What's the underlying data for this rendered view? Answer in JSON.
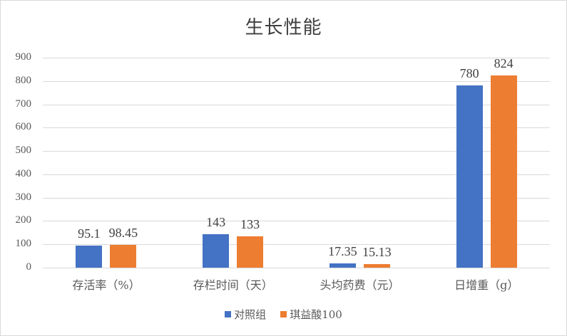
{
  "chart_data": {
    "type": "bar",
    "title": "生长性能",
    "categories": [
      "存活率（%）",
      "存栏时间（天）",
      "头均药费（元）",
      "日增重（g）"
    ],
    "series": [
      {
        "name": "对照组",
        "color": "#4472c4",
        "values": [
          95.1,
          143,
          17.35,
          780
        ],
        "labels": [
          "95.1",
          "143",
          "17.35",
          "780"
        ]
      },
      {
        "name": "琪益酸100",
        "color": "#ed7d31",
        "values": [
          98.45,
          133,
          15.13,
          824
        ],
        "labels": [
          "98.45",
          "133",
          "15.13",
          "824"
        ]
      }
    ],
    "xlabel": "",
    "ylabel": "",
    "ylim": [
      0,
      900
    ],
    "yticks": [
      "0",
      "100",
      "200",
      "300",
      "400",
      "500",
      "600",
      "700",
      "800",
      "900"
    ],
    "grid": true,
    "legend_position": "bottom",
    "data_labels": true
  }
}
